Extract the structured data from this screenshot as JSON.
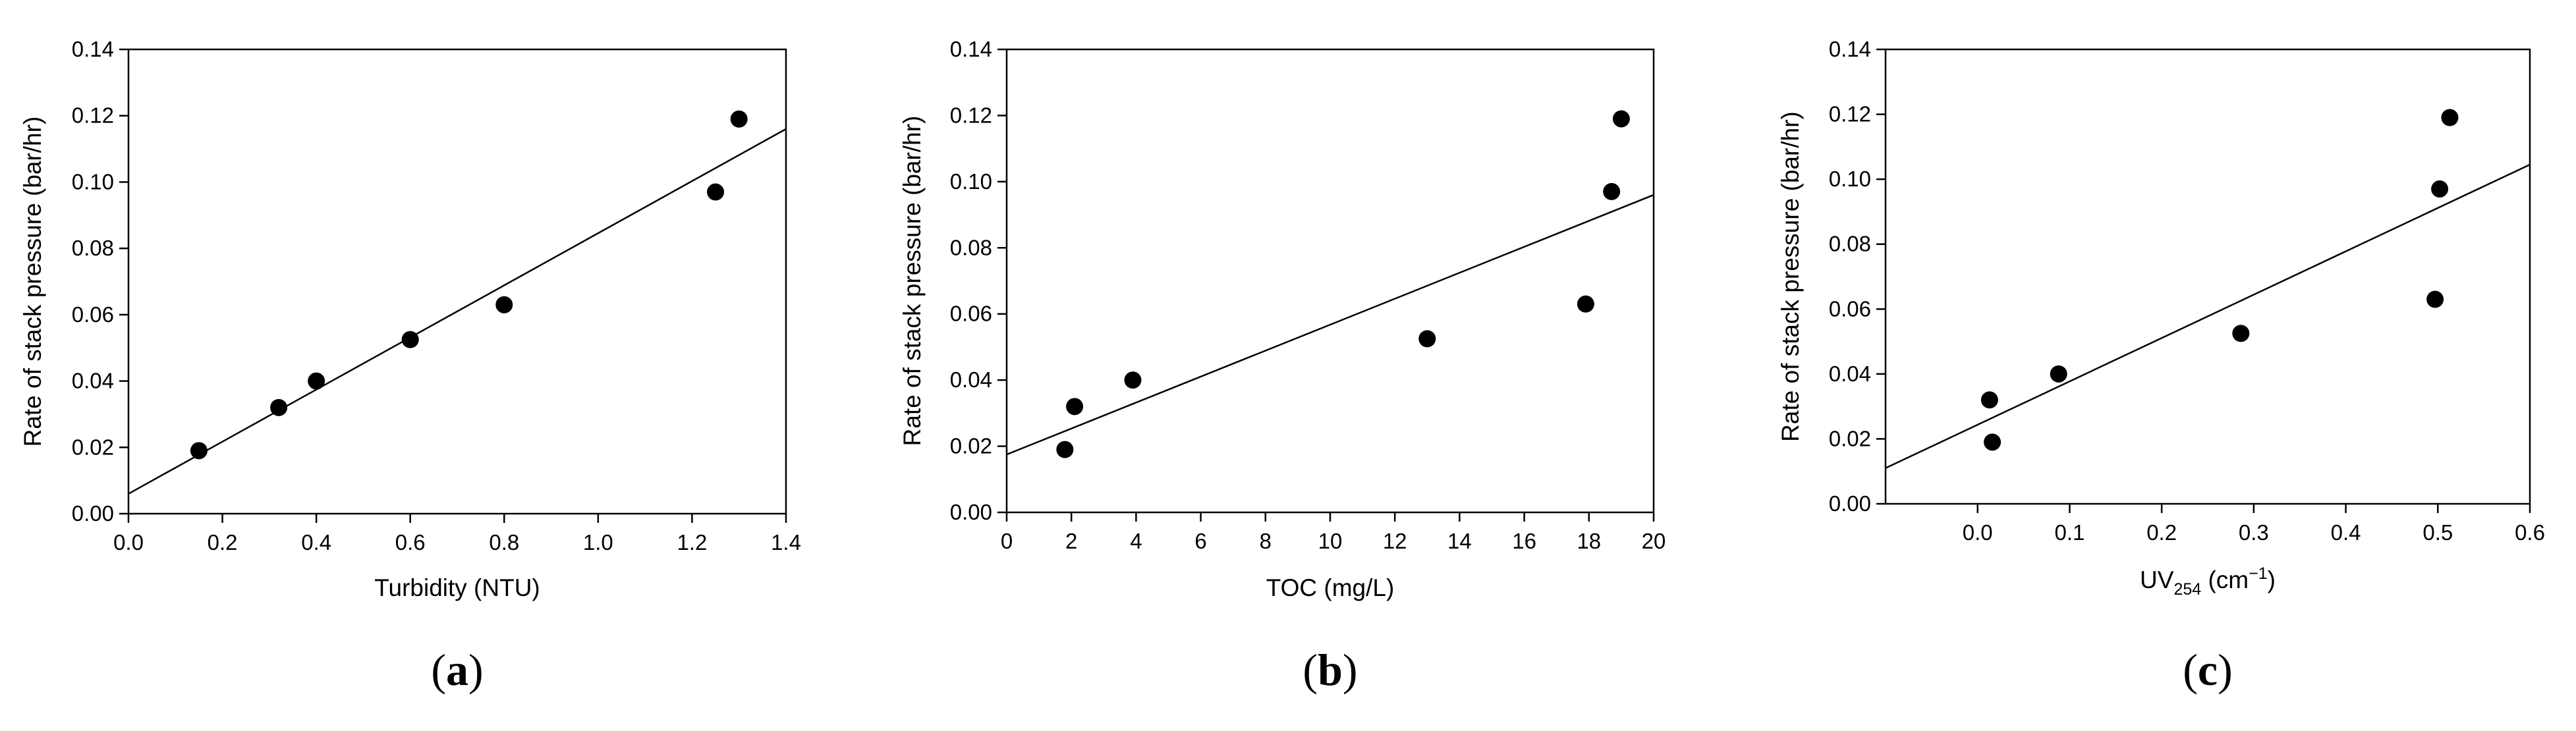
{
  "chart_data": [
    {
      "type": "scatter",
      "panel": "a",
      "panel_label": "a",
      "xlabel": "Turbidity (NTU)",
      "ylabel": "Rate of stack pressure (bar/hr)",
      "xlim": [
        0,
        1.4
      ],
      "ylim": [
        0,
        0.14
      ],
      "xticks": [
        "0.0",
        "0.2",
        "0.4",
        "0.6",
        "0.8",
        "1.0",
        "1.2",
        "1.4"
      ],
      "yticks": [
        "0.00",
        "0.02",
        "0.04",
        "0.06",
        "0.08",
        "0.10",
        "0.12",
        "0.14"
      ],
      "x": [
        0.15,
        0.32,
        0.4,
        0.6,
        0.8,
        1.25,
        1.3
      ],
      "y": [
        0.019,
        0.032,
        0.04,
        0.0525,
        0.063,
        0.097,
        0.119
      ],
      "fit_line": {
        "x": [
          0,
          1.4
        ],
        "y": [
          0.006,
          0.116
        ]
      },
      "grid": false
    },
    {
      "type": "scatter",
      "panel": "b",
      "panel_label": "b",
      "xlabel": "TOC (mg/L)",
      "ylabel": "Rate of stack pressure (bar/hr)",
      "xlim": [
        0,
        20
      ],
      "ylim": [
        0,
        0.14
      ],
      "xticks": [
        "0",
        "2",
        "4",
        "6",
        "8",
        "10",
        "12",
        "14",
        "16",
        "18",
        "20"
      ],
      "yticks": [
        "0.00",
        "0.02",
        "0.04",
        "0.06",
        "0.08",
        "0.10",
        "0.12",
        "0.14"
      ],
      "x": [
        1.8,
        2.1,
        3.9,
        13.0,
        17.9,
        18.7,
        19.0
      ],
      "y": [
        0.019,
        0.032,
        0.04,
        0.0525,
        0.063,
        0.097,
        0.119
      ],
      "fit_line": {
        "x": [
          0,
          20
        ],
        "y": [
          0.0175,
          0.096
        ]
      },
      "grid": false
    },
    {
      "type": "scatter",
      "panel": "c",
      "panel_label": "c",
      "xlabel": "UV",
      "xlabel_sub": "254",
      "xlabel_unit": " (cm",
      "xlabel_sup": "−1",
      "xlabel_close": ")",
      "ylabel": "Rate of stack pressure (bar/hr)",
      "xlim": [
        -0.1,
        0.6
      ],
      "ylim": [
        0,
        0.14
      ],
      "xticks": [
        "0.0",
        "0.1",
        "0.2",
        "0.3",
        "0.4",
        "0.5",
        "0.6"
      ],
      "xtick_values": [
        0,
        0.1,
        0.2,
        0.3,
        0.4,
        0.5,
        0.6
      ],
      "yticks": [
        "0.00",
        "0.02",
        "0.04",
        "0.06",
        "0.08",
        "0.10",
        "0.12",
        "0.14"
      ],
      "x": [
        0.013,
        0.016,
        0.088,
        0.286,
        0.497,
        0.502,
        0.513
      ],
      "y": [
        0.032,
        0.019,
        0.04,
        0.0525,
        0.063,
        0.097,
        0.119
      ],
      "fit_line": {
        "x": [
          -0.1,
          0.6
        ],
        "y": [
          0.011,
          0.1045
        ]
      },
      "grid": false
    }
  ]
}
